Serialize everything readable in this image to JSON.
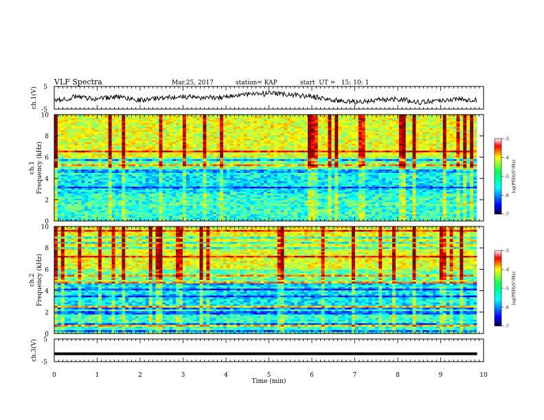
{
  "header": {
    "title": "VLF Spectra",
    "date": "Mar.25, 2017",
    "station": "station= KAP",
    "start": "start  UT =   15: 10: 1"
  },
  "chart_data": [
    {
      "type": "line",
      "ylabel": "ch.1(V)",
      "ylim": [
        -5,
        5
      ],
      "yticks": [
        "5",
        "-5"
      ],
      "xlim": [
        0,
        10
      ],
      "x": [
        0,
        0.5,
        1,
        1.5,
        2,
        2.5,
        3,
        3.5,
        4,
        4.5,
        5,
        5.5,
        6,
        6.5,
        7,
        7.5,
        8,
        8.5,
        9,
        9.5,
        9.85
      ],
      "values": [
        -1.5,
        0.5,
        -0.5,
        0.5,
        -1.0,
        0.0,
        0.5,
        0.0,
        0.5,
        1.5,
        1.8,
        1.5,
        0.5,
        -1.0,
        -2.0,
        -1.0,
        -0.5,
        -2.0,
        -1.0,
        -0.5,
        -1.0
      ]
    },
    {
      "type": "heatmap",
      "ylabel": "ch.1\nFrequency (kHz)",
      "xlim": [
        0,
        10
      ],
      "ylim": [
        0,
        10
      ],
      "yticks": [
        "0",
        "2",
        "4",
        "6",
        "8",
        "10"
      ],
      "colorbar": {
        "label": "log(PSD)(V²/Hz)",
        "range": [
          -7,
          -3
        ],
        "ticks": [
          "-3",
          "-4",
          "-5",
          "-6",
          "-7"
        ]
      }
    },
    {
      "type": "heatmap",
      "ylabel": "ch.2\nFrequency (kHz)",
      "xlim": [
        0,
        10
      ],
      "ylim": [
        0,
        10
      ],
      "yticks": [
        "0",
        "2",
        "4",
        "6",
        "8",
        "10"
      ],
      "colorbar": {
        "label": "log(PSD)(V²/Hz)",
        "range": [
          -7,
          -3
        ],
        "ticks": [
          "-3",
          "-4",
          "-5",
          "-6",
          "-7"
        ]
      }
    },
    {
      "type": "line",
      "ylabel": "ch.3(V)",
      "ylim": [
        -5,
        5
      ],
      "yticks": [
        "5",
        "-5"
      ],
      "xlim": [
        0,
        10
      ],
      "x": [
        0,
        9.85
      ],
      "values": [
        -1.5,
        -1.5
      ]
    }
  ],
  "xaxis": {
    "label": "Time (min)",
    "ticks": [
      "0",
      "1",
      "2",
      "3",
      "4",
      "5",
      "6",
      "7",
      "8",
      "9",
      "10"
    ]
  },
  "colors": {
    "line": "#000000"
  }
}
